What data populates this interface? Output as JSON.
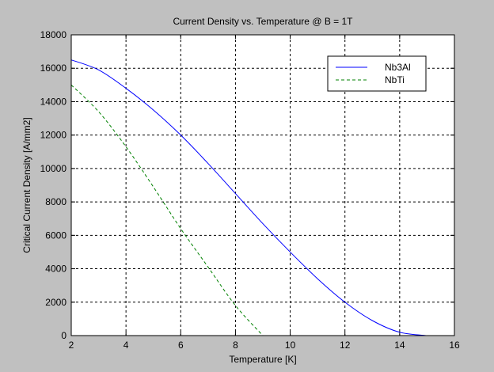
{
  "chart_data": {
    "type": "line",
    "title": "Current Density  vs. Temperature   @ B = 1T",
    "xlabel": "Temperature [K]",
    "ylabel": "Critical Current Density [A/mm2]",
    "xlim": [
      2,
      16
    ],
    "ylim": [
      0,
      18000
    ],
    "xticks": [
      2,
      4,
      6,
      8,
      10,
      12,
      14,
      16
    ],
    "yticks": [
      0,
      2000,
      4000,
      6000,
      8000,
      10000,
      12000,
      14000,
      16000,
      18000
    ],
    "grid": true,
    "legend_position": "top-right",
    "series": [
      {
        "name": "Nb3Al",
        "color": "#0000ff",
        "style": "solid",
        "x": [
          2,
          3,
          4,
          5,
          6,
          7,
          8,
          9,
          10,
          11,
          12,
          13,
          14,
          15
        ],
        "y": [
          16500,
          15900,
          14800,
          13500,
          12000,
          10300,
          8500,
          6700,
          5000,
          3400,
          2000,
          900,
          200,
          0
        ]
      },
      {
        "name": "NbTi",
        "color": "#008000",
        "style": "dashed",
        "x": [
          2,
          3,
          4,
          5,
          6,
          7,
          8,
          9
        ],
        "y": [
          15000,
          13400,
          11300,
          8900,
          6400,
          4100,
          1800,
          0
        ]
      }
    ]
  }
}
